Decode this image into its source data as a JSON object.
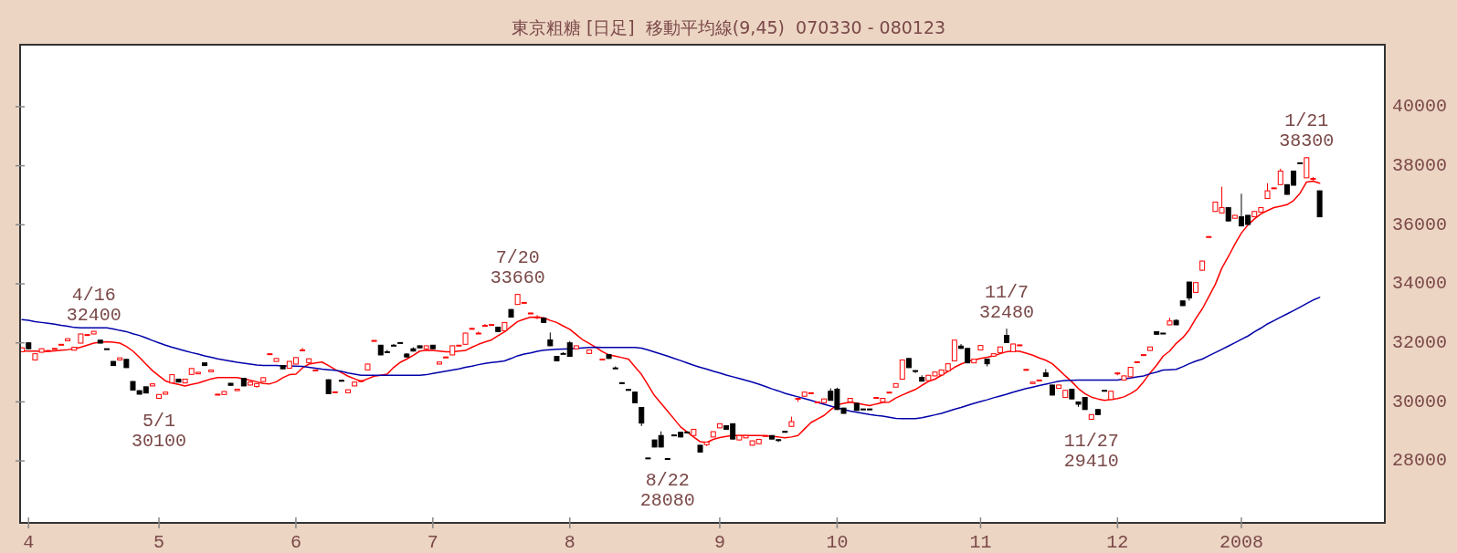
{
  "chart_data": {
    "type": "candlestick",
    "title": "東京粗糖 [日足]  移動平均線(9,45)  070330 - 080123",
    "categories": [
      null,
      "4",
      null,
      null,
      null,
      null,
      null,
      null,
      null,
      null,
      null,
      null,
      null,
      null,
      null,
      null,
      null,
      null,
      null,
      null,
      null,
      "5",
      null,
      null,
      null,
      null,
      null,
      null,
      null,
      null,
      null,
      null,
      null,
      null,
      null,
      null,
      null,
      null,
      null,
      null,
      null,
      null,
      "6",
      null,
      null,
      null,
      null,
      null,
      null,
      null,
      null,
      null,
      null,
      null,
      null,
      null,
      null,
      null,
      null,
      null,
      null,
      null,
      null,
      "7",
      null,
      null,
      null,
      null,
      null,
      null,
      null,
      null,
      null,
      null,
      null,
      null,
      null,
      null,
      null,
      null,
      null,
      null,
      null,
      null,
      "8",
      null,
      null,
      null,
      null,
      null,
      null,
      null,
      null,
      null,
      null,
      null,
      null,
      null,
      null,
      null,
      null,
      null,
      null,
      null,
      null,
      null,
      null,
      "9",
      null,
      null,
      null,
      null,
      null,
      null,
      null,
      null,
      null,
      null,
      null,
      null,
      null,
      null,
      null,
      null,
      null,
      "10",
      null,
      null,
      null,
      null,
      null,
      null,
      null,
      null,
      null,
      null,
      null,
      null,
      null,
      null,
      null,
      null,
      null,
      null,
      null,
      null,
      null,
      "11",
      null,
      null,
      null,
      null,
      null,
      null,
      null,
      null,
      null,
      null,
      null,
      null,
      null,
      null,
      null,
      null,
      null,
      null,
      null,
      null,
      "12",
      null,
      null,
      null,
      null,
      null,
      null,
      null,
      null,
      null,
      null,
      null,
      null,
      null,
      null,
      null,
      null,
      null,
      null,
      "2008",
      null,
      null,
      null,
      null,
      null,
      null,
      null,
      null,
      null,
      null,
      null,
      null
    ],
    "ohlc": [
      [
        31700,
        31850,
        31680,
        31830
      ],
      [
        32000,
        32020,
        31780,
        31800
      ],
      [
        31420,
        31640,
        31400,
        31630
      ],
      [
        31680,
        31810,
        31670,
        31800
      ],
      [
        31720,
        31750,
        31710,
        31740
      ],
      [
        31790,
        31820,
        31780,
        31810
      ],
      [
        31930,
        31950,
        31930,
        31950
      ],
      [
        32070,
        32150,
        32060,
        32140
      ],
      [
        31750,
        31860,
        31740,
        31850
      ],
      [
        31990,
        32310,
        31980,
        32300
      ],
      [
        32260,
        32280,
        32260,
        32280
      ],
      [
        32300,
        32400,
        32290,
        32390
      ],
      [
        32090,
        32100,
        31980,
        31990
      ],
      [
        31800,
        31810,
        31790,
        31800
      ],
      [
        31370,
        31380,
        31220,
        31230
      ],
      [
        31420,
        31500,
        31410,
        31490
      ],
      [
        31440,
        31450,
        31150,
        31160
      ],
      [
        30690,
        30700,
        30390,
        30400
      ],
      [
        30380,
        30390,
        30250,
        30260
      ],
      [
        30510,
        30520,
        30290,
        30300
      ],
      [
        30540,
        30620,
        30530,
        30610
      ],
      [
        30120,
        30260,
        30100,
        30250
      ],
      [
        30260,
        30340,
        30250,
        30330
      ],
      [
        30640,
        30930,
        30630,
        30920
      ],
      [
        30770,
        30780,
        30660,
        30670
      ],
      [
        30640,
        30780,
        30630,
        30770
      ],
      [
        30930,
        31140,
        30920,
        31130
      ],
      [
        30950,
        31010,
        30940,
        31000
      ],
      [
        31320,
        31330,
        31220,
        31230
      ],
      [
        31020,
        31090,
        31010,
        31080
      ],
      [
        30250,
        30270,
        30250,
        30260
      ],
      [
        30250,
        30360,
        30240,
        30350
      ],
      [
        30630,
        30640,
        30550,
        30560
      ],
      [
        30380,
        30440,
        30370,
        30430
      ],
      [
        30800,
        30810,
        30530,
        30540
      ],
      [
        30570,
        30680,
        30560,
        30670
      ],
      [
        30520,
        30630,
        30480,
        30620
      ],
      [
        30690,
        30830,
        30680,
        30820
      ],
      [
        31620,
        31640,
        31620,
        31630
      ],
      [
        31370,
        31480,
        31360,
        31470
      ],
      [
        31230,
        31240,
        31110,
        31120
      ],
      [
        31140,
        31380,
        31130,
        31370
      ],
      [
        31280,
        31510,
        31270,
        31500
      ],
      [
        31750,
        31830,
        31740,
        31760
      ],
      [
        31330,
        31470,
        31320,
        31460
      ],
      [
        31070,
        31090,
        31060,
        31080
      ],
      null,
      [
        30750,
        30760,
        30270,
        30280
      ],
      [
        30330,
        30350,
        30320,
        30340
      ],
      [
        30730,
        30740,
        30710,
        30720
      ],
      [
        30310,
        30420,
        30300,
        30410
      ],
      [
        30540,
        30680,
        30530,
        30670
      ],
      [
        30710,
        30730,
        30710,
        30720
      ],
      [
        31080,
        31290,
        31070,
        31280
      ],
      [
        32070,
        32090,
        32070,
        32080
      ],
      [
        31920,
        31930,
        31580,
        31590
      ],
      [
        31700,
        31760,
        31680,
        31690
      ],
      [
        31920,
        31960,
        31910,
        31910
      ],
      [
        32010,
        32020,
        31990,
        32000
      ],
      [
        31620,
        31650,
        31510,
        31520
      ],
      [
        31800,
        31850,
        31710,
        31720
      ],
      [
        31900,
        31910,
        31820,
        31830
      ],
      [
        31800,
        31910,
        31790,
        31900
      ],
      [
        31920,
        31930,
        31790,
        31800
      ],
      [
        31280,
        31360,
        31270,
        31350
      ],
      [
        31510,
        31530,
        31510,
        31520
      ],
      [
        31590,
        31910,
        31580,
        31900
      ],
      [
        31910,
        31930,
        31910,
        31920
      ],
      [
        31950,
        32340,
        31940,
        32330
      ],
      [
        32480,
        32500,
        32480,
        32490
      ],
      [
        32320,
        32380,
        32320,
        32330
      ],
      [
        32580,
        32640,
        32580,
        32590
      ],
      [
        32610,
        32630,
        32610,
        32620
      ],
      [
        32530,
        32540,
        32370,
        32380
      ],
      [
        32410,
        32700,
        32400,
        32690
      ],
      [
        33130,
        33140,
        32860,
        32870
      ],
      [
        33300,
        33660,
        33290,
        33640
      ],
      [
        33370,
        33380,
        33340,
        33370
      ],
      [
        32990,
        33020,
        32990,
        33010
      ],
      [
        32860,
        32940,
        32800,
        32880
      ],
      [
        32840,
        32850,
        32680,
        32690
      ],
      [
        32100,
        32350,
        31890,
        31900
      ],
      [
        31540,
        31550,
        31380,
        31390
      ],
      [
        31640,
        31680,
        31630,
        31640
      ],
      [
        32000,
        32060,
        31530,
        31540
      ],
      [
        31800,
        31910,
        31790,
        31900
      ],
      null,
      [
        31640,
        31770,
        31630,
        31760
      ],
      null,
      [
        31440,
        31460,
        31440,
        31450
      ],
      [
        31600,
        31610,
        31460,
        31470
      ],
      [
        31150,
        31200,
        31130,
        31140
      ],
      [
        30650,
        30670,
        30630,
        30640
      ],
      [
        30420,
        30430,
        30400,
        30410
      ],
      [
        30330,
        30340,
        29960,
        29970
      ],
      [
        29810,
        29820,
        29180,
        29280
      ],
      [
        28100,
        28110,
        28090,
        28100
      ],
      [
        28710,
        28720,
        28460,
        28470
      ],
      [
        28860,
        29000,
        28460,
        28470
      ],
      [
        28080,
        28090,
        28080,
        28080
      ],
      [
        28880,
        28890,
        28870,
        28880
      ],
      [
        28970,
        28980,
        28800,
        28810
      ],
      [
        28980,
        29000,
        28960,
        28970
      ],
      [
        28860,
        29080,
        28850,
        29070
      ],
      [
        28530,
        28540,
        28290,
        28300
      ],
      [
        28550,
        28650,
        28500,
        28640
      ],
      [
        28810,
        29000,
        28800,
        28990
      ],
      [
        29120,
        29270,
        29110,
        29260
      ],
      [
        29190,
        29200,
        29060,
        29070
      ],
      [
        29260,
        29270,
        28730,
        28740
      ],
      [
        28710,
        28870,
        28700,
        28860
      ],
      [
        28780,
        28870,
        28770,
        28860
      ],
      [
        28530,
        28690,
        28520,
        28680
      ],
      [
        28580,
        28740,
        28570,
        28730
      ],
      [
        28850,
        28870,
        28850,
        28860
      ],
      [
        28860,
        28870,
        28730,
        28740
      ],
      [
        28720,
        28730,
        28640,
        28710
      ],
      [
        29000,
        29010,
        28980,
        28990
      ],
      [
        29170,
        29500,
        29160,
        29330
      ],
      [
        30110,
        30130,
        30000,
        30120
      ],
      [
        30190,
        30340,
        30180,
        30330
      ],
      [
        30300,
        30320,
        30300,
        30310
      ],
      [
        29990,
        30010,
        29990,
        30000
      ],
      [
        29970,
        30110,
        29960,
        30100
      ],
      [
        30360,
        30460,
        30040,
        30050
      ],
      [
        30430,
        30480,
        29730,
        29740
      ],
      [
        29790,
        29800,
        29600,
        29610
      ],
      [
        30000,
        30130,
        29990,
        30120
      ],
      [
        29950,
        29960,
        29700,
        29710
      ],
      [
        29760,
        29770,
        29730,
        29740
      ],
      [
        29760,
        29770,
        29730,
        29740
      ],
      [
        30140,
        30160,
        30130,
        30150
      ],
      [
        30000,
        30130,
        29990,
        30120
      ],
      [
        30320,
        30340,
        30320,
        30330
      ],
      [
        30500,
        30630,
        30490,
        30620
      ],
      [
        30770,
        31430,
        30760,
        31420
      ],
      [
        31470,
        31480,
        31150,
        31160
      ],
      [
        31060,
        31070,
        30980,
        31050
      ],
      [
        30830,
        30900,
        30690,
        30700
      ],
      [
        30720,
        30910,
        30710,
        30900
      ],
      [
        30880,
        31020,
        30870,
        31010
      ],
      [
        30910,
        31090,
        30900,
        31080
      ],
      [
        31050,
        31300,
        31040,
        31290
      ],
      [
        31390,
        32100,
        31380,
        32090
      ],
      [
        31890,
        31960,
        31800,
        31810
      ],
      [
        31810,
        31820,
        31310,
        31320
      ],
      [
        31320,
        31460,
        31310,
        31450
      ],
      [
        31760,
        31920,
        31750,
        31910
      ],
      [
        31450,
        31460,
        31200,
        31290
      ],
      [
        31550,
        31640,
        31540,
        31630
      ],
      [
        31670,
        31870,
        31660,
        31860
      ],
      [
        32250,
        32480,
        32000,
        32010
      ],
      [
        31700,
        31970,
        31690,
        31960
      ],
      [
        31920,
        31940,
        31920,
        31930
      ],
      [
        31090,
        31110,
        31090,
        31100
      ],
      [
        30620,
        30680,
        30610,
        30670
      ],
      [
        30730,
        30750,
        30730,
        30740
      ],
      [
        30980,
        31110,
        30850,
        30860
      ],
      [
        30570,
        30580,
        30220,
        30230
      ],
      [
        30460,
        30580,
        30450,
        30570
      ],
      [
        30150,
        30400,
        30140,
        30390
      ],
      [
        30430,
        30440,
        30090,
        30100
      ],
      [
        30000,
        30010,
        29830,
        29920
      ],
      [
        30150,
        30160,
        29730,
        29740
      ],
      [
        29410,
        29580,
        29410,
        29570
      ],
      [
        29740,
        29750,
        29560,
        29570
      ],
      [
        30390,
        30400,
        30380,
        30390
      ],
      [
        30080,
        30370,
        30070,
        30360
      ],
      [
        30970,
        30990,
        30900,
        30980
      ],
      [
        30740,
        30890,
        30730,
        30880
      ],
      [
        30850,
        31180,
        30840,
        31170
      ],
      [
        31350,
        31370,
        31350,
        31360
      ],
      [
        31590,
        31610,
        31590,
        31600
      ],
      [
        31740,
        31870,
        31730,
        31860
      ],
      [
        32380,
        32390,
        32280,
        32290
      ],
      [
        32330,
        32340,
        32300,
        32320
      ],
      [
        32610,
        32850,
        32600,
        32740
      ],
      [
        32760,
        32800,
        32600,
        32610
      ],
      [
        33420,
        33430,
        33250,
        33260
      ],
      [
        34060,
        34070,
        33430,
        33520
      ],
      [
        33710,
        34050,
        33700,
        34040
      ],
      [
        34460,
        34780,
        34450,
        34770
      ],
      [
        35590,
        35610,
        35590,
        35600
      ],
      [
        36450,
        36780,
        36440,
        36770
      ],
      [
        36400,
        37290,
        36390,
        36580
      ],
      [
        36580,
        36590,
        36120,
        36130
      ],
      [
        36220,
        36330,
        36210,
        36320
      ],
      [
        36270,
        37050,
        35950,
        35960
      ],
      [
        36320,
        36330,
        36000,
        36010
      ],
      [
        36270,
        36460,
        36260,
        36450
      ],
      [
        36430,
        36590,
        36420,
        36580
      ],
      [
        36890,
        37410,
        36880,
        37150
      ],
      [
        37240,
        37260,
        37240,
        37250
      ],
      [
        37360,
        37900,
        37350,
        37820
      ],
      [
        37360,
        37370,
        37020,
        37030
      ],
      [
        37820,
        37830,
        37330,
        37340
      ],
      [
        38090,
        38110,
        38090,
        38100
      ],
      [
        37590,
        38300,
        37580,
        38270
      ],
      [
        37560,
        37620,
        37500,
        37570
      ],
      [
        37150,
        37160,
        36260,
        36270
      ]
    ],
    "colors": [
      "#ff0000",
      "#000000",
      "#ff0000",
      "#ff0000",
      "#ff0000",
      "#ff0000",
      "#ff0000",
      "#ff0000",
      "#ff0000",
      "#ff0000",
      "#ff0000",
      "#ff0000",
      "#000000",
      "#000000",
      "#000000",
      "#ff0000",
      "#000000",
      "#000000",
      "#000000",
      "#000000",
      "#ff0000",
      "#ff0000",
      "#ff0000",
      "#ff0000",
      "#000000",
      "#ff0000",
      "#ff0000",
      "#ff0000",
      "#000000",
      "#ff0000",
      "#ff0000",
      "#ff0000",
      "#000000",
      "#ff0000",
      "#000000",
      "#ff0000",
      "#ff0000",
      "#ff0000",
      "#ff0000",
      "#ff0000",
      "#000000",
      "#ff0000",
      "#ff0000",
      "#ff0000",
      "#ff0000",
      "#ff0000",
      null,
      "#000000",
      "#ff0000",
      "#000000",
      "#ff0000",
      "#ff0000",
      "#ff0000",
      "#ff0000",
      "#ff0000",
      "#000000",
      "#000000",
      "#000000",
      "#000000",
      "#000000",
      "#000000",
      "#000000",
      "#ff0000",
      "#000000",
      "#ff0000",
      "#ff0000",
      "#ff0000",
      "#ff0000",
      "#ff0000",
      "#ff0000",
      "#ff0000",
      "#ff0000",
      "#ff0000",
      "#000000",
      "#ff0000",
      "#000000",
      "#ff0000",
      "#ff0000",
      "#ff0000",
      "#ff0000",
      "#000000",
      "#000000",
      "#000000",
      "#000000",
      "#000000",
      "#ff0000",
      null,
      "#ff0000",
      null,
      "#ff0000",
      "#000000",
      "#000000",
      "#000000",
      "#000000",
      "#000000",
      "#000000",
      "#000000",
      "#000000",
      "#000000",
      "#000000",
      "#000000",
      "#000000",
      "#000000",
      "#ff0000",
      "#000000",
      "#ff0000",
      "#ff0000",
      "#ff0000",
      "#000000",
      "#000000",
      "#ff0000",
      "#ff0000",
      "#ff0000",
      "#ff0000",
      "#ff0000",
      "#000000",
      "#000000",
      "#000000",
      "#ff0000",
      "#ff0000",
      "#ff0000",
      "#ff0000",
      "#ff0000",
      "#ff0000",
      "#000000",
      "#000000",
      "#000000",
      "#ff0000",
      "#000000",
      "#000000",
      "#000000",
      "#ff0000",
      "#ff0000",
      "#ff0000",
      "#ff0000",
      "#ff0000",
      "#000000",
      "#000000",
      "#000000",
      "#ff0000",
      "#ff0000",
      "#ff0000",
      "#ff0000",
      "#ff0000",
      "#000000",
      "#000000",
      "#ff0000",
      "#ff0000",
      "#000000",
      "#ff0000",
      "#ff0000",
      "#000000",
      "#ff0000",
      "#ff0000",
      "#ff0000",
      "#ff0000",
      "#ff0000",
      "#000000",
      "#000000",
      "#ff0000",
      "#ff0000",
      "#000000",
      "#000000",
      "#000000",
      "#ff0000",
      "#000000",
      "#000000",
      "#ff0000",
      "#ff0000",
      "#ff0000",
      "#ff0000",
      "#ff0000",
      "#ff0000",
      "#ff0000",
      "#000000",
      "#000000",
      "#ff0000",
      "#000000",
      "#000000",
      "#000000",
      "#ff0000",
      "#ff0000",
      "#ff0000",
      "#ff0000",
      "#ff0000",
      "#000000",
      "#ff0000",
      "#000000",
      "#000000",
      "#ff0000",
      "#ff0000",
      "#ff0000",
      "#ff0000",
      "#ff0000",
      "#000000",
      "#000000",
      "#000000",
      "#ff0000",
      "#ff0000",
      "#000000"
    ],
    "series": [
      {
        "type": "line",
        "color": "#ff0000",
        "values": [
          31730,
          31720,
          31720,
          31710,
          31710,
          31730,
          31750,
          31770,
          31800,
          31850,
          31920,
          31990,
          32020,
          32040,
          32020,
          31990,
          31880,
          31720,
          31510,
          31280,
          31060,
          30880,
          30710,
          30640,
          30590,
          30540,
          30590,
          30640,
          30710,
          30780,
          30820,
          30820,
          30820,
          30820,
          30780,
          30730,
          30680,
          30620,
          30610,
          30680,
          30820,
          30920,
          30940,
          31150,
          31280,
          31320,
          31350,
          31230,
          31100,
          30990,
          30870,
          30780,
          30690,
          30780,
          30870,
          30900,
          30940,
          31170,
          31340,
          31450,
          31580,
          31720,
          31750,
          31740,
          31720,
          31700,
          31700,
          31720,
          31740,
          31850,
          31950,
          32030,
          32100,
          32240,
          32370,
          32550,
          32720,
          32800,
          32870,
          32860,
          32850,
          32760,
          32690,
          32570,
          32460,
          32280,
          32100,
          31980,
          31850,
          31700,
          31590,
          31550,
          31500,
          31450,
          31190,
          30930,
          30570,
          30210,
          29950,
          29690,
          29420,
          29150,
          28980,
          28810,
          28650,
          28620,
          28730,
          28790,
          28830,
          28860,
          28860,
          28860,
          28860,
          28860,
          28850,
          28830,
          28810,
          28780,
          28810,
          28860,
          29080,
          29300,
          29420,
          29540,
          29730,
          29900,
          29950,
          29990,
          29960,
          29910,
          29870,
          29930,
          29980,
          29990,
          30130,
          30230,
          30330,
          30420,
          30560,
          30690,
          30770,
          30900,
          31030,
          31170,
          31280,
          31370,
          31420,
          31470,
          31510,
          31560,
          31630,
          31700,
          31730,
          31710,
          31650,
          31580,
          31490,
          31410,
          31290,
          31090,
          30880,
          30680,
          30450,
          30280,
          30160,
          30100,
          30050,
          30080,
          30110,
          30170,
          30280,
          30420,
          30680,
          30980,
          31240,
          31550,
          31720,
          31980,
          32170,
          32440,
          32820,
          33150,
          33560,
          33980,
          34530,
          34920,
          35340,
          35720,
          35990,
          36200,
          36370,
          36480,
          36580,
          36630,
          36680,
          36820,
          37070,
          37450,
          37480,
          37410
        ]
      },
      {
        "type": "line",
        "color": "#0000aa",
        "values": [
          32790,
          32760,
          32720,
          32690,
          32660,
          32630,
          32590,
          32560,
          32520,
          32510,
          32510,
          32510,
          32510,
          32510,
          32470,
          32420,
          32380,
          32310,
          32250,
          32170,
          32080,
          32000,
          31920,
          31850,
          31790,
          31730,
          31670,
          31620,
          31560,
          31510,
          31460,
          31420,
          31380,
          31340,
          31310,
          31280,
          31250,
          31230,
          31230,
          31230,
          31220,
          31220,
          31210,
          31200,
          31170,
          31140,
          31110,
          31090,
          31070,
          31030,
          30980,
          30940,
          30900,
          30900,
          30900,
          30900,
          30900,
          30900,
          30900,
          30900,
          30900,
          30900,
          30920,
          30960,
          31000,
          31040,
          31080,
          31120,
          31170,
          31210,
          31260,
          31300,
          31330,
          31360,
          31390,
          31470,
          31560,
          31620,
          31660,
          31710,
          31750,
          31770,
          31780,
          31790,
          31800,
          31810,
          31830,
          31840,
          31850,
          31840,
          31840,
          31840,
          31840,
          31840,
          31840,
          31820,
          31760,
          31690,
          31620,
          31550,
          31470,
          31400,
          31320,
          31240,
          31170,
          31110,
          31040,
          30980,
          30910,
          30850,
          30790,
          30730,
          30670,
          30600,
          30520,
          30440,
          30370,
          30290,
          30230,
          30170,
          30110,
          30050,
          29980,
          29920,
          29860,
          29800,
          29740,
          29690,
          29650,
          29610,
          29570,
          29540,
          29520,
          29480,
          29440,
          29430,
          29430,
          29430,
          29460,
          29510,
          29560,
          29610,
          29680,
          29750,
          29810,
          29880,
          29950,
          30010,
          30070,
          30140,
          30200,
          30260,
          30330,
          30390,
          30450,
          30500,
          30550,
          30600,
          30650,
          30700,
          30720,
          30730,
          30740,
          30740,
          30740,
          30740,
          30740,
          30740,
          30740,
          30780,
          30810,
          30850,
          30880,
          30950,
          31010,
          31080,
          31090,
          31100,
          31190,
          31290,
          31380,
          31450,
          31560,
          31670,
          31780,
          31890,
          32000,
          32120,
          32230,
          32370,
          32500,
          32640,
          32750,
          32870,
          32980,
          33090,
          33210,
          33330,
          33450,
          33540
        ]
      }
    ],
    "ylim": [
      25900,
      42100
    ],
    "yticks": [
      28000,
      30000,
      32000,
      34000,
      36000,
      38000,
      40000
    ],
    "annotations": [
      {
        "text": "4/16\n32400",
        "y": 32400
      },
      {
        "text": "5/1\n30100",
        "y": 30100
      },
      {
        "text": "7/20\n33660",
        "y": 33660
      },
      {
        "text": "8/22\n28080",
        "y": 28080
      },
      {
        "text": "11/7\n32480",
        "y": 32480
      },
      {
        "text": "11/27\n29410",
        "y": 29410
      },
      {
        "text": "1/21\n38300",
        "y": 38300
      }
    ]
  }
}
